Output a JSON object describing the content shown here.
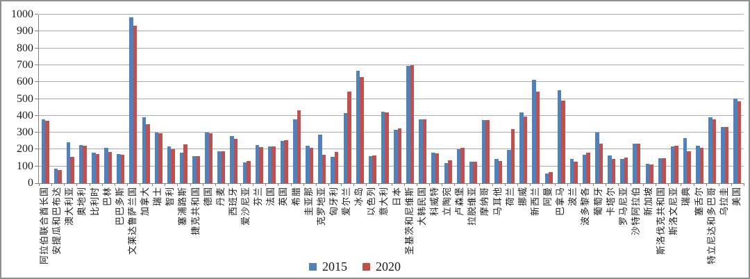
{
  "chart_data": {
    "type": "bar",
    "title": "",
    "xlabel": "",
    "ylabel": "",
    "ylim": [
      0,
      1000
    ],
    "ytick_step": 100,
    "grid": true,
    "legend_position": "bottom-center",
    "categories": [
      "阿拉伯联合酋长国",
      "安提瓜和巴布达",
      "澳大利亚",
      "奥地利",
      "比利时",
      "巴林",
      "巴巴多斯",
      "文莱达鲁萨兰国",
      "加拿大",
      "瑞士",
      "智利",
      "塞浦路斯",
      "捷克共和国",
      "德国",
      "丹麦",
      "西班牙",
      "爱沙尼亚",
      "芬兰",
      "法国",
      "英国",
      "希腊",
      "圭亚那",
      "克罗地亚",
      "匈牙利",
      "爱尔兰",
      "冰岛",
      "以色列",
      "意大利",
      "日本",
      "圣基茨和尼维斯",
      "大韩民国",
      "科威特",
      "立陶宛",
      "卢森堡",
      "拉脱维亚",
      "摩纳哥",
      "马耳他",
      "荷兰",
      "挪威",
      "新西兰",
      "阿曼",
      "巴拿马",
      "波兰",
      "波多黎各",
      "葡萄牙",
      "卡塔尔",
      "罗马尼亚",
      "沙特阿拉伯",
      "新加坡",
      "斯洛伐克共和国",
      "斯洛文尼亚",
      "瑞典",
      "塞舌尔",
      "特立尼达和多巴哥",
      "乌拉圭",
      "美国"
    ],
    "series": [
      {
        "name": "2015",
        "color": "#4f81bd",
        "values": [
          380,
          85,
          245,
          226,
          181,
          209,
          172,
          982,
          390,
          300,
          217,
          180,
          162,
          300,
          188,
          278,
          122,
          228,
          217,
          252,
          380,
          221,
          288,
          157,
          414,
          665,
          161,
          425,
          317,
          694,
          380,
          182,
          119,
          202,
          126,
          375,
          145,
          199,
          419,
          613,
          57,
          553,
          145,
          168,
          302,
          164,
          143,
          236,
          114,
          150,
          220,
          268,
          221,
          392,
          333,
          504
        ]
      },
      {
        "name": "2020",
        "color": "#c0504d",
        "values": [
          370,
          80,
          156,
          222,
          173,
          184,
          168,
          935,
          350,
          295,
          200,
          229,
          162,
          297,
          188,
          263,
          131,
          213,
          217,
          257,
          433,
          212,
          167,
          185,
          544,
          629,
          166,
          421,
          325,
          699,
          380,
          178,
          136,
          211,
          126,
          375,
          133,
          323,
          396,
          543,
          64,
          488,
          127,
          181,
          236,
          146,
          154,
          236,
          110,
          147,
          224,
          188,
          209,
          380,
          333,
          487
        ]
      }
    ]
  },
  "legend": {
    "label_2015": "2015",
    "label_2020": "2020"
  },
  "style": {
    "gridline_color": "#a9a9a9",
    "axis_color": "#808080",
    "text_color": "#1a1a1a"
  }
}
